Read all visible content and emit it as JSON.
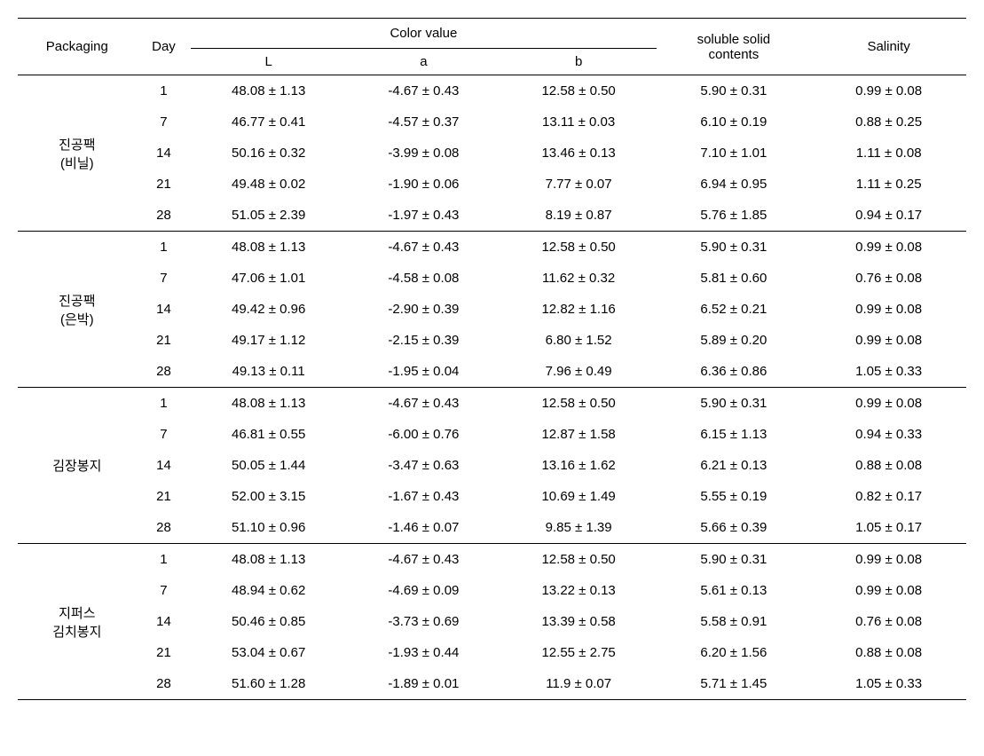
{
  "headers": {
    "packaging": "Packaging",
    "day": "Day",
    "color_value": "Color value",
    "L": "L",
    "a": "a",
    "b": "b",
    "soluble": "soluble solid",
    "contents": "contents",
    "salinity": "Salinity"
  },
  "groups": [
    {
      "name_line1": "진공팩",
      "name_line2": "(비닐)",
      "rows": [
        {
          "day": "1",
          "L": "48.08 ± 1.13",
          "a": "-4.67 ± 0.43",
          "b": "12.58 ± 0.50",
          "ssc": "5.90 ± 0.31",
          "sal": "0.99 ± 0.08"
        },
        {
          "day": "7",
          "L": "46.77 ± 0.41",
          "a": "-4.57 ± 0.37",
          "b": "13.11 ± 0.03",
          "ssc": "6.10 ± 0.19",
          "sal": "0.88 ± 0.25"
        },
        {
          "day": "14",
          "L": "50.16 ± 0.32",
          "a": "-3.99 ± 0.08",
          "b": "13.46 ± 0.13",
          "ssc": "7.10 ± 1.01",
          "sal": "1.11 ± 0.08"
        },
        {
          "day": "21",
          "L": "49.48 ± 0.02",
          "a": "-1.90 ± 0.06",
          "b": "7.77 ± 0.07",
          "ssc": "6.94 ± 0.95",
          "sal": "1.11 ± 0.25"
        },
        {
          "day": "28",
          "L": "51.05 ± 2.39",
          "a": "-1.97 ± 0.43",
          "b": "8.19 ± 0.87",
          "ssc": "5.76 ± 1.85",
          "sal": "0.94 ± 0.17"
        }
      ]
    },
    {
      "name_line1": "진공팩",
      "name_line2": "(은박)",
      "rows": [
        {
          "day": "1",
          "L": "48.08 ± 1.13",
          "a": "-4.67 ± 0.43",
          "b": "12.58 ± 0.50",
          "ssc": "5.90 ± 0.31",
          "sal": "0.99 ± 0.08"
        },
        {
          "day": "7",
          "L": "47.06 ± 1.01",
          "a": "-4.58 ± 0.08",
          "b": "11.62 ± 0.32",
          "ssc": "5.81 ± 0.60",
          "sal": "0.76 ± 0.08"
        },
        {
          "day": "14",
          "L": "49.42 ± 0.96",
          "a": "-2.90 ± 0.39",
          "b": "12.82 ± 1.16",
          "ssc": "6.52 ± 0.21",
          "sal": "0.99 ± 0.08"
        },
        {
          "day": "21",
          "L": "49.17 ± 1.12",
          "a": "-2.15 ± 0.39",
          "b": "6.80 ± 1.52",
          "ssc": "5.89 ± 0.20",
          "sal": "0.99 ± 0.08"
        },
        {
          "day": "28",
          "L": "49.13 ± 0.11",
          "a": "-1.95 ± 0.04",
          "b": "7.96 ± 0.49",
          "ssc": "6.36 ± 0.86",
          "sal": "1.05 ± 0.33"
        }
      ]
    },
    {
      "name_line1": "김장봉지",
      "name_line2": "",
      "rows": [
        {
          "day": "1",
          "L": "48.08 ± 1.13",
          "a": "-4.67 ± 0.43",
          "b": "12.58 ± 0.50",
          "ssc": "5.90 ± 0.31",
          "sal": "0.99 ± 0.08"
        },
        {
          "day": "7",
          "L": "46.81 ± 0.55",
          "a": "-6.00 ± 0.76",
          "b": "12.87 ± 1.58",
          "ssc": "6.15 ± 1.13",
          "sal": "0.94 ± 0.33"
        },
        {
          "day": "14",
          "L": "50.05 ± 1.44",
          "a": "-3.47 ± 0.63",
          "b": "13.16 ± 1.62",
          "ssc": "6.21 ± 0.13",
          "sal": "0.88 ± 0.08"
        },
        {
          "day": "21",
          "L": "52.00 ± 3.15",
          "a": "-1.67 ± 0.43",
          "b": "10.69 ± 1.49",
          "ssc": "5.55 ± 0.19",
          "sal": "0.82 ± 0.17"
        },
        {
          "day": "28",
          "L": "51.10 ± 0.96",
          "a": "-1.46 ± 0.07",
          "b": "9.85 ± 1.39",
          "ssc": "5.66 ± 0.39",
          "sal": "1.05 ± 0.17"
        }
      ]
    },
    {
      "name_line1": "지퍼스",
      "name_line2": "김치봉지",
      "rows": [
        {
          "day": "1",
          "L": "48.08 ± 1.13",
          "a": "-4.67 ± 0.43",
          "b": "12.58 ± 0.50",
          "ssc": "5.90 ± 0.31",
          "sal": "0.99 ± 0.08"
        },
        {
          "day": "7",
          "L": "48.94 ± 0.62",
          "a": "-4.69 ± 0.09",
          "b": "13.22 ± 0.13",
          "ssc": "5.61 ± 0.13",
          "sal": "0.99 ± 0.08"
        },
        {
          "day": "14",
          "L": "50.46 ± 0.85",
          "a": "-3.73 ± 0.69",
          "b": "13.39 ± 0.58",
          "ssc": "5.58 ± 0.91",
          "sal": "0.76 ± 0.08"
        },
        {
          "day": "21",
          "L": "53.04 ± 0.67",
          "a": "-1.93 ± 0.44",
          "b": "12.55 ± 2.75",
          "ssc": "6.20 ± 1.56",
          "sal": "0.88 ± 0.08"
        },
        {
          "day": "28",
          "L": "51.60 ± 1.28",
          "a": "-1.89 ± 0.01",
          "b": "11.9 ± 0.07",
          "ssc": "5.71 ± 1.45",
          "sal": "1.05 ± 0.33"
        }
      ]
    }
  ]
}
